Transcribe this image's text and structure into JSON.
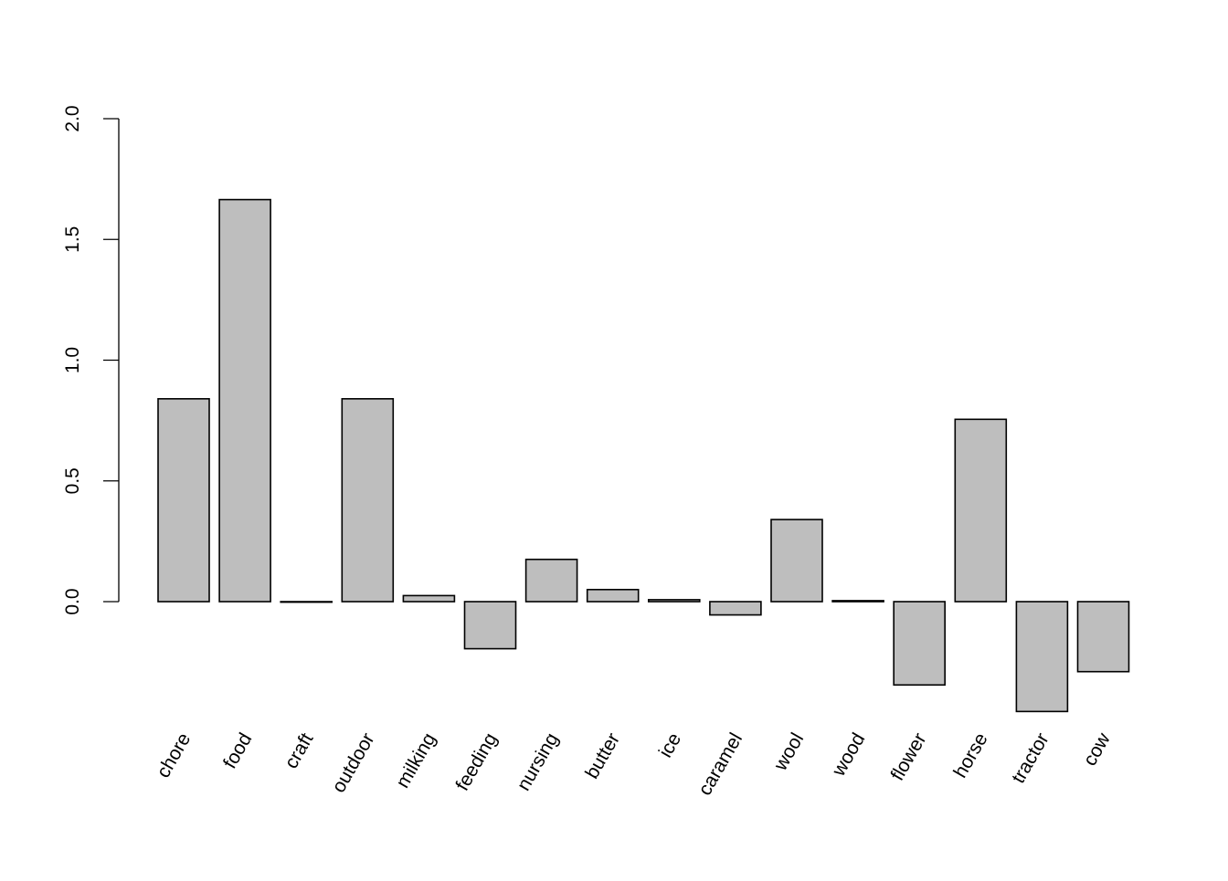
{
  "chart_data": {
    "type": "bar",
    "title": "",
    "xlabel": "",
    "ylabel": "",
    "ylim": [
      -0.5,
      2.0
    ],
    "yticks": [
      0.0,
      0.5,
      1.0,
      1.5,
      2.0
    ],
    "ytick_labels": [
      "0.0",
      "0.5",
      "1.0",
      "1.5",
      "2.0"
    ],
    "grid": false,
    "bar_fill": "#bebebe",
    "bar_stroke": "#000000",
    "categories": [
      "chore",
      "food",
      "craft",
      "outdoor",
      "milking",
      "feeding",
      "nursing",
      "butter",
      "ice",
      "caramel",
      "wool",
      "wood",
      "flower",
      "horse",
      "tractor",
      "cow"
    ],
    "values": [
      0.84,
      1.665,
      0.0,
      0.84,
      0.025,
      -0.195,
      0.175,
      0.05,
      0.008,
      -0.055,
      0.34,
      0.004,
      -0.345,
      0.755,
      -0.455,
      -0.29
    ]
  }
}
